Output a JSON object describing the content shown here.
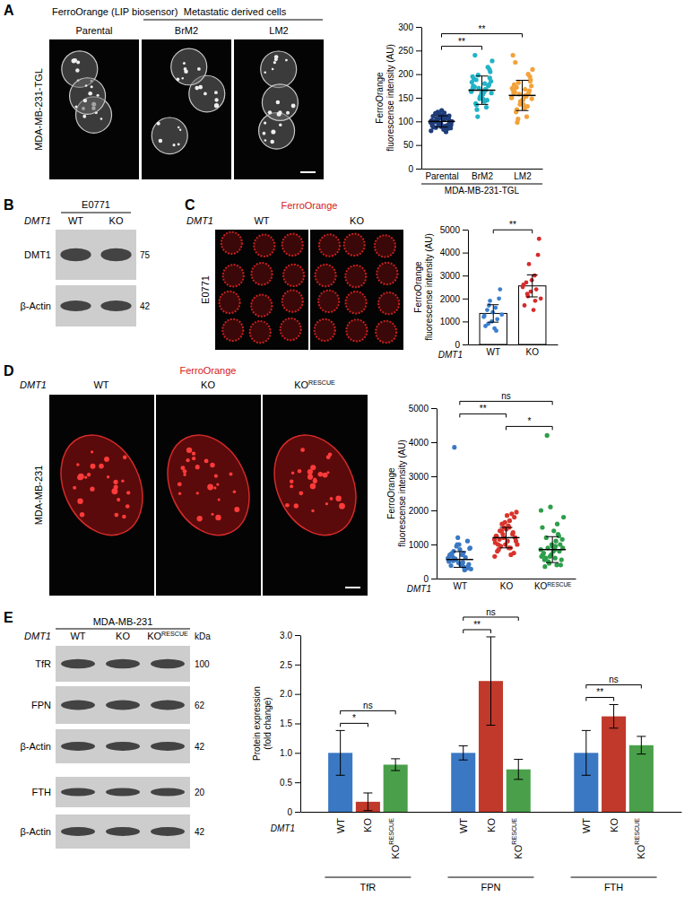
{
  "figure": {
    "A": {
      "label": "A",
      "title": "FerroOrange (LIP biosensor)",
      "group_label": "Metastatic derived cells",
      "row_label": "MDA-MB-231-TGL",
      "images": [
        "Parental",
        "BrM2",
        "LM2"
      ]
    },
    "B": {
      "label": "B",
      "cell_line": "E0771",
      "gene": "DMT1",
      "lanes": [
        "WT",
        "KO"
      ],
      "rows": [
        {
          "name": "DMT1",
          "kda": 75
        },
        {
          "name": "β-Actin",
          "kda": 42
        }
      ]
    },
    "C": {
      "label": "C",
      "title": "FerroOrange",
      "gene": "DMT1",
      "row_label": "E0771",
      "images": [
        "WT",
        "KO"
      ]
    },
    "D": {
      "label": "D",
      "title": "FerroOrange",
      "gene": "DMT1",
      "row_label": "MDA-MB-231",
      "images": [
        "WT",
        "KO",
        "KO RESCUE"
      ]
    },
    "E": {
      "label": "E",
      "cell_line": "MDA-MB-231",
      "gene": "DMT1",
      "lanes": [
        "WT",
        "KO",
        "KO RESCUE"
      ],
      "unit": "kDa",
      "rows": [
        {
          "name": "TfR",
          "kda": 100
        },
        {
          "name": "FPN",
          "kda": 62
        },
        {
          "name": "β-Actin",
          "kda": 42
        },
        {
          "name": "FTH",
          "kda": 20
        },
        {
          "name": "β-Actin",
          "kda": 42
        }
      ]
    }
  },
  "chart_data": [
    {
      "type": "strip",
      "ylabel": [
        "FerroOrange",
        "fluorescense intensity (AU)"
      ],
      "xlabel": "MDA-MB-231-TGL",
      "categories": [
        "Parental",
        "BrM2",
        "LM2"
      ],
      "colors": [
        "#1f3d7a",
        "#22b3c7",
        "#f2a23a"
      ],
      "points": [
        [
          98,
          104,
          87,
          112,
          95,
          101,
          78,
          120,
          93,
          108,
          99,
          85,
          115,
          102,
          90,
          106,
          97,
          123,
          88,
          110,
          94,
          100,
          83,
          117,
          105,
          96,
          91,
          109,
          103,
          86,
          113,
          99,
          92,
          107,
          80,
          118,
          101,
          95,
          89,
          111
        ],
        [
          165,
          142,
          188,
          210,
          155,
          172,
          130,
          198,
          160,
          147,
          240,
          175,
          152,
          183,
          168,
          125,
          205,
          158,
          190,
          145,
          170,
          228,
          162,
          138,
          178,
          150,
          195,
          167,
          110,
          185,
          157,
          173,
          215,
          148,
          163,
          180,
          135,
          192,
          160,
          175
        ],
        [
          150,
          128,
          172,
          195,
          140,
          165,
          110,
          182,
          148,
          135,
          225,
          160,
          142,
          170,
          155,
          98,
          188,
          145,
          178,
          132,
          158,
          210,
          152,
          120,
          165,
          138,
          240,
          153,
          105,
          175,
          146,
          162,
          200,
          136,
          150,
          168,
          125,
          185,
          143,
          160
        ]
      ],
      "means": [
        100,
        166,
        155
      ],
      "errors": [
        12,
        30,
        32
      ],
      "ylim": [
        0,
        300
      ],
      "yticks": [
        0,
        50,
        100,
        150,
        200,
        250,
        300
      ],
      "annotations": [
        {
          "text": "**",
          "from": 0,
          "to": 1
        },
        {
          "text": "**",
          "from": 0,
          "to": 2
        }
      ]
    },
    {
      "type": "bar",
      "ylabel": [
        "FerroOrange",
        "fluorescense intensity (AU)"
      ],
      "xlabel": "DMT1",
      "categories": [
        "WT",
        "KO"
      ],
      "values": [
        1350,
        2550
      ],
      "errors": [
        380,
        480
      ],
      "colors": [
        "#3b7fd0",
        "#d62b2b"
      ],
      "points": [
        [
          1200,
          1600,
          900,
          2400,
          1400,
          800,
          1100,
          1900,
          1300,
          700,
          1500,
          2000,
          1000,
          1250,
          600,
          1700
        ],
        [
          2500,
          3000,
          2200,
          4600,
          2800,
          1700,
          2400,
          3500,
          2000,
          1500,
          2700,
          3900,
          2300,
          2600,
          1900,
          2100
        ]
      ],
      "ylim": [
        0,
        5000
      ],
      "yticks": [
        0,
        1000,
        2000,
        3000,
        4000,
        5000
      ],
      "annotations": [
        {
          "text": "**",
          "from": 0,
          "to": 1
        }
      ]
    },
    {
      "type": "strip",
      "ylabel": [
        "FerroOrange",
        "fluorescense intensity (AU)"
      ],
      "xlabel": "DMT1",
      "categories": [
        "WT",
        "KO",
        "KO RESCUE"
      ],
      "colors": [
        "#3a78c3",
        "#d9342b",
        "#2e9e4a"
      ],
      "points": [
        [
          600,
          450,
          800,
          350,
          1000,
          700,
          250,
          550,
          900,
          400,
          650,
          300,
          1200,
          500,
          750,
          3850,
          420,
          850,
          380,
          620,
          950,
          280,
          700,
          520,
          1100,
          460,
          680,
          330,
          580,
          880,
          410,
          740,
          300,
          1000,
          560,
          480
        ],
        [
          1150,
          900,
          1400,
          1800,
          1000,
          1250,
          700,
          1600,
          1950,
          1100,
          850,
          1350,
          1500,
          1050,
          1700,
          950,
          1200,
          1450,
          800,
          1900,
          1300,
          1000,
          1550,
          1150,
          750,
          1650,
          1250,
          900,
          1400,
          1100,
          1850,
          1000,
          1300,
          1200,
          650,
          1500
        ],
        [
          850,
          600,
          1200,
          400,
          1000,
          700,
          1600,
          500,
          900,
          1400,
          350,
          800,
          2100,
          650,
          1100,
          4200,
          550,
          950,
          750,
          1300,
          450,
          1800,
          850,
          600,
          1000,
          700,
          1500,
          400,
          900,
          1150,
          800,
          550,
          1250,
          650,
          2000,
          950
        ]
      ],
      "means": [
        560,
        1200,
        850
      ],
      "errors": [
        230,
        300,
        380
      ],
      "ylim": [
        0,
        5000
      ],
      "yticks": [
        0,
        1000,
        2000,
        3000,
        4000,
        5000
      ],
      "annotations": [
        {
          "text": "*",
          "from": 1,
          "to": 2
        },
        {
          "text": "**",
          "from": 0,
          "to": 1
        },
        {
          "text": "ns",
          "from": 0,
          "to": 2
        }
      ]
    },
    {
      "type": "bar",
      "ylabel": [
        "Protein expression",
        "(fold change)"
      ],
      "xlabel": "DMT1",
      "categories": [
        "TfR",
        "FPN",
        "FTH"
      ],
      "series": [
        {
          "name": "WT",
          "color": "#3a78c3",
          "values": [
            1,
            1,
            1
          ],
          "errors": [
            0.38,
            0.12,
            0.38
          ]
        },
        {
          "name": "KO",
          "color": "#c0392b",
          "values": [
            0.17,
            2.22,
            1.62
          ],
          "errors": [
            0.15,
            0.75,
            0.2
          ]
        },
        {
          "name": "KO RESCUE",
          "color": "#4aa04a",
          "values": [
            0.8,
            0.72,
            1.13
          ],
          "errors": [
            0.1,
            0.17,
            0.15
          ]
        }
      ],
      "ylim": [
        0,
        3
      ],
      "yticks": [
        0,
        0.5,
        {
          "value": 1,
          "label": "1.0"
        },
        1.5,
        {
          "value": 2,
          "label": "2.0"
        },
        2.5,
        {
          "value": 3,
          "label": "3.0"
        }
      ],
      "annotations": [
        {
          "group": 0,
          "from": 0,
          "to": 1,
          "text": "*"
        },
        {
          "group": 0,
          "from": 0,
          "to": 2,
          "text": "ns"
        },
        {
          "group": 1,
          "from": 0,
          "to": 1,
          "text": "**"
        },
        {
          "group": 1,
          "from": 0,
          "to": 2,
          "text": "ns"
        },
        {
          "group": 2,
          "from": 0,
          "to": 1,
          "text": "**"
        },
        {
          "group": 2,
          "from": 0,
          "to": 2,
          "text": "ns"
        }
      ]
    }
  ]
}
